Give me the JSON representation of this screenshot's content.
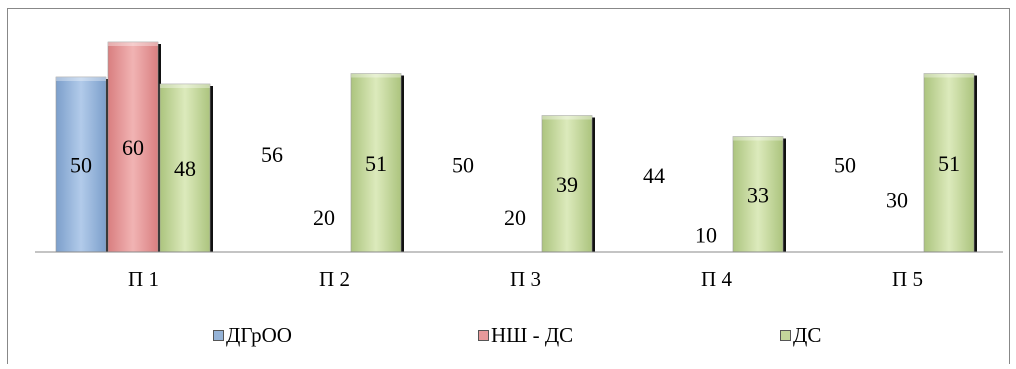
{
  "chart_data": {
    "type": "bar",
    "categories": [
      "П 1",
      "П 2",
      "П 3",
      "П 4",
      "П 5"
    ],
    "series": [
      {
        "name": "ДГрОО",
        "values": [
          50,
          56,
          50,
          44,
          50
        ],
        "color": "#95B3D7",
        "visible_bars": [
          true,
          false,
          false,
          false,
          false
        ]
      },
      {
        "name": "НШ - ДС",
        "values": [
          60,
          20,
          20,
          10,
          30
        ],
        "color": "#E6999A",
        "visible_bars": [
          true,
          false,
          false,
          false,
          false
        ]
      },
      {
        "name": "ДС",
        "values": [
          48,
          51,
          39,
          33,
          51
        ],
        "color": "#C3D69B",
        "visible_bars": [
          true,
          true,
          true,
          true,
          true
        ]
      }
    ],
    "ylim": [
      0,
      60
    ],
    "grid": false,
    "legend_position": "bottom"
  }
}
